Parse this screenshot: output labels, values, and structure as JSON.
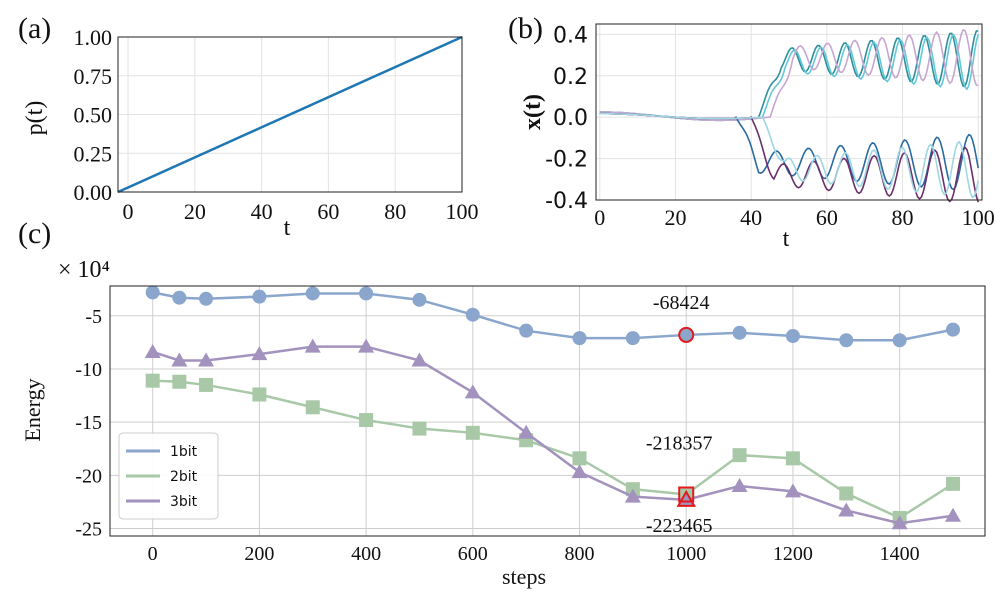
{
  "chart_data": [
    {
      "panel_label": "(a)",
      "type": "line",
      "xlabel": "t",
      "ylabel": "p(t)",
      "xlim": [
        -3,
        100
      ],
      "ylim": [
        0,
        1
      ],
      "xticks": [
        "0",
        "20",
        "40",
        "60",
        "80",
        "100"
      ],
      "yticks": [
        "0.00",
        "0.25",
        "0.50",
        "0.75",
        "1.00"
      ],
      "x": [
        -3,
        100
      ],
      "series": [
        {
          "name": "p",
          "color": "#1f77b4",
          "values": [
            0.0,
            1.0
          ]
        }
      ]
    },
    {
      "panel_label": "(b)",
      "type": "line",
      "xlabel": "t",
      "ylabel": "x(t)",
      "xlim": [
        -1,
        101
      ],
      "ylim": [
        -0.4,
        0.45
      ],
      "xticks": [
        "0",
        "20",
        "40",
        "60",
        "80",
        "100"
      ],
      "yticks": [
        "0.4",
        "0.2",
        "0.0",
        "-0.2",
        "-0.4"
      ],
      "series": [
        {
          "name": "upper-teal",
          "color": "#2f8f9d",
          "branch": "up",
          "onset": 42,
          "amp": 0.28,
          "period": 7.0,
          "phase": 0.0
        },
        {
          "name": "upper-cyan",
          "color": "#63c9d8",
          "branch": "up",
          "onset": 43,
          "amp": 0.27,
          "period": 7.0,
          "phase": 0.3
        },
        {
          "name": "upper-pink",
          "color": "#c7a6cf",
          "branch": "up",
          "onset": 45,
          "amp": 0.29,
          "period": 7.2,
          "phase": 0.9
        },
        {
          "name": "lower-blue",
          "color": "#2a6aa0",
          "branch": "down",
          "onset": 36,
          "amp": 0.22,
          "period": 8.5,
          "phase": 0.0
        },
        {
          "name": "lower-purple",
          "color": "#6b2f6a",
          "branch": "down",
          "onset": 40,
          "amp": 0.28,
          "period": 8.0,
          "phase": 1.2
        },
        {
          "name": "lower-lightblue",
          "color": "#9fd6e2",
          "branch": "down",
          "onset": 43,
          "amp": 0.25,
          "period": 7.5,
          "phase": 2.1
        }
      ]
    },
    {
      "panel_label": "(c)",
      "type": "line",
      "xlabel": "steps",
      "ylabel": "Energy",
      "scale_label": "× 10⁴",
      "xlim": [
        -80,
        1560
      ],
      "ylim": [
        -25.7,
        -2.2
      ],
      "xticks": [
        "0",
        "200",
        "400",
        "600",
        "800",
        "1000",
        "1200",
        "1400"
      ],
      "yticks": [
        "-5",
        "-10",
        "-15",
        "-20",
        "-25"
      ],
      "legend_position": "lower-left",
      "x": [
        0,
        50,
        100,
        200,
        300,
        400,
        500,
        600,
        700,
        800,
        900,
        1000,
        1100,
        1200,
        1300,
        1400,
        1500
      ],
      "series": [
        {
          "name": "1bit",
          "color": "#8aa6cc",
          "marker": "circle",
          "values": [
            -2.8,
            -3.3,
            -3.4,
            -3.2,
            -2.9,
            -2.9,
            -3.5,
            -4.9,
            -6.4,
            -7.1,
            -7.1,
            -6.8,
            -6.6,
            -6.9,
            -7.3,
            -7.3,
            -6.3
          ]
        },
        {
          "name": "2bit",
          "color": "#a8c8a8",
          "marker": "square",
          "values": [
            -11.1,
            -11.2,
            -11.5,
            -12.4,
            -13.6,
            -14.8,
            -15.6,
            -16.0,
            -16.7,
            -18.4,
            -21.3,
            -21.8,
            -18.1,
            -18.4,
            -21.7,
            -24.0,
            -20.8
          ]
        },
        {
          "name": "3bit",
          "color": "#a292bd",
          "marker": "triangle",
          "values": [
            -8.4,
            -9.2,
            -9.2,
            -8.6,
            -7.9,
            -7.9,
            -9.2,
            -12.2,
            -16.0,
            -19.7,
            -22.0,
            -22.3,
            -21.0,
            -21.5,
            -23.3,
            -24.5,
            -23.8
          ]
        }
      ],
      "highlights": [
        {
          "series": "1bit",
          "x": 1000,
          "label": "-68424"
        },
        {
          "series": "2bit",
          "x": 1000,
          "label": "-218357"
        },
        {
          "series": "3bit",
          "x": 1000,
          "label": "-223465"
        }
      ]
    }
  ]
}
